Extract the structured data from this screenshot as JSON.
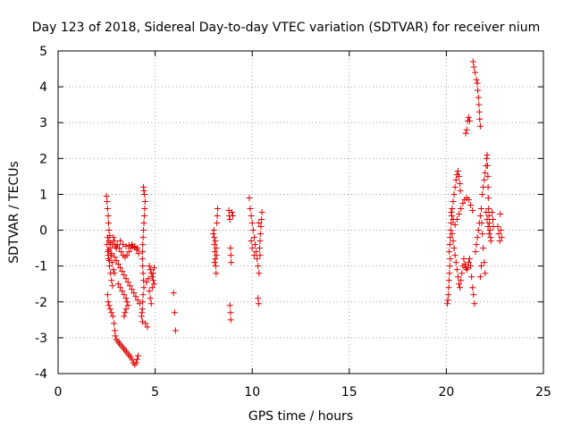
{
  "chart_data": {
    "type": "scatter",
    "title": "Day 123 of 2018, Sidereal Day-to-day VTEC variation (SDTVAR) for receiver nium",
    "xlabel": "GPS time / hours",
    "ylabel": "SDTVAR / TECUs",
    "xlim": [
      0,
      25
    ],
    "ylim": [
      -4,
      5
    ],
    "xticks": [
      "0",
      "5",
      "10",
      "15",
      "20",
      "25"
    ],
    "yticks": [
      "-4",
      "-3",
      "-2",
      "-1",
      "0",
      "1",
      "2",
      "3",
      "4",
      "5"
    ],
    "grid": true,
    "marker": "+",
    "color": "#e00000",
    "series": [
      {
        "name": "SDTVAR",
        "points": [
          [
            2.5,
            0.95
          ],
          [
            2.52,
            0.8
          ],
          [
            2.55,
            0.6
          ],
          [
            2.58,
            0.4
          ],
          [
            2.6,
            0.2
          ],
          [
            2.62,
            0.0
          ],
          [
            2.55,
            -0.2
          ],
          [
            2.52,
            -0.4
          ],
          [
            2.56,
            -0.6
          ],
          [
            2.6,
            -0.8
          ],
          [
            2.65,
            -1.0
          ],
          [
            2.7,
            -1.2
          ],
          [
            2.75,
            -1.4
          ],
          [
            2.8,
            -1.55
          ],
          [
            2.62,
            -0.3
          ],
          [
            2.68,
            -0.5
          ],
          [
            2.72,
            -0.7
          ],
          [
            2.78,
            -0.9
          ],
          [
            2.85,
            -1.1
          ],
          [
            2.9,
            -1.2
          ],
          [
            2.55,
            -1.8
          ],
          [
            2.58,
            -2.0
          ],
          [
            2.62,
            -2.1
          ],
          [
            2.68,
            -2.2
          ],
          [
            2.75,
            -2.3
          ],
          [
            2.82,
            -2.4
          ],
          [
            2.88,
            -2.6
          ],
          [
            2.92,
            -2.8
          ],
          [
            2.95,
            -2.95
          ],
          [
            3.0,
            -3.05
          ],
          [
            3.08,
            -3.1
          ],
          [
            3.15,
            -3.15
          ],
          [
            3.22,
            -3.2
          ],
          [
            3.3,
            -3.25
          ],
          [
            3.38,
            -3.3
          ],
          [
            3.45,
            -3.35
          ],
          [
            3.52,
            -3.4
          ],
          [
            3.6,
            -3.45
          ],
          [
            3.68,
            -3.5
          ],
          [
            3.75,
            -3.55
          ],
          [
            3.82,
            -3.62
          ],
          [
            3.88,
            -3.7
          ],
          [
            3.95,
            -3.75
          ],
          [
            4.02,
            -3.7
          ],
          [
            4.08,
            -3.6
          ],
          [
            4.12,
            -3.5
          ],
          [
            2.6,
            -0.55
          ],
          [
            2.75,
            -0.65
          ],
          [
            2.9,
            -0.75
          ],
          [
            3.0,
            -0.85
          ],
          [
            3.1,
            -0.95
          ],
          [
            3.2,
            -1.05
          ],
          [
            3.3,
            -1.15
          ],
          [
            3.4,
            -1.25
          ],
          [
            3.5,
            -1.35
          ],
          [
            3.6,
            -1.45
          ],
          [
            3.7,
            -1.55
          ],
          [
            3.8,
            -1.65
          ],
          [
            3.9,
            -1.75
          ],
          [
            4.0,
            -1.85
          ],
          [
            4.1,
            -1.95
          ],
          [
            4.2,
            -2.05
          ],
          [
            2.95,
            -0.45
          ],
          [
            3.05,
            -0.4
          ],
          [
            3.15,
            -0.5
          ],
          [
            3.25,
            -0.6
          ],
          [
            3.35,
            -0.7
          ],
          [
            3.45,
            -0.75
          ],
          [
            3.55,
            -0.7
          ],
          [
            3.65,
            -0.6
          ],
          [
            3.75,
            -0.5
          ],
          [
            3.85,
            -0.45
          ],
          [
            3.95,
            -0.48
          ],
          [
            4.05,
            -0.55
          ],
          [
            4.15,
            -0.65
          ],
          [
            3.2,
            -0.3
          ],
          [
            3.35,
            -0.4
          ],
          [
            3.5,
            -0.45
          ],
          [
            3.65,
            -0.42
          ],
          [
            3.8,
            -0.4
          ],
          [
            3.95,
            -0.45
          ],
          [
            4.1,
            -0.5
          ],
          [
            3.1,
            -1.5
          ],
          [
            3.2,
            -1.6
          ],
          [
            3.3,
            -1.7
          ],
          [
            3.4,
            -1.8
          ],
          [
            3.5,
            -1.9
          ],
          [
            3.55,
            -2.0
          ],
          [
            3.6,
            -2.1
          ],
          [
            3.5,
            -2.2
          ],
          [
            3.45,
            -2.3
          ],
          [
            3.4,
            -2.4
          ],
          [
            2.8,
            -0.4
          ],
          [
            2.85,
            -0.2
          ],
          [
            2.9,
            -0.3
          ],
          [
            3.0,
            -0.5
          ],
          [
            2.7,
            -0.35
          ],
          [
            2.66,
            -0.15
          ],
          [
            2.58,
            -0.7
          ],
          [
            2.64,
            -0.85
          ],
          [
            4.4,
            1.2
          ],
          [
            4.42,
            1.1
          ],
          [
            4.45,
            1.0
          ],
          [
            4.48,
            0.8
          ],
          [
            4.46,
            0.6
          ],
          [
            4.44,
            0.4
          ],
          [
            4.42,
            0.2
          ],
          [
            4.4,
            0.0
          ],
          [
            4.38,
            -0.2
          ],
          [
            4.36,
            -0.4
          ],
          [
            4.35,
            -0.6
          ],
          [
            4.34,
            -0.8
          ],
          [
            4.36,
            -1.0
          ],
          [
            4.38,
            -1.2
          ],
          [
            4.4,
            -1.4
          ],
          [
            4.42,
            -1.6
          ],
          [
            4.38,
            -1.8
          ],
          [
            4.36,
            -2.0
          ],
          [
            4.34,
            -2.2
          ],
          [
            4.32,
            -2.3
          ],
          [
            4.3,
            -2.4
          ],
          [
            4.35,
            -2.55
          ],
          [
            4.5,
            -2.6
          ],
          [
            4.6,
            -2.7
          ],
          [
            4.7,
            -1.0
          ],
          [
            4.75,
            -1.1
          ],
          [
            4.8,
            -1.2
          ],
          [
            4.85,
            -1.3
          ],
          [
            4.9,
            -1.4
          ],
          [
            4.95,
            -1.5
          ],
          [
            4.7,
            -1.7
          ],
          [
            4.75,
            -1.9
          ],
          [
            4.8,
            -2.05
          ],
          [
            4.85,
            -1.6
          ],
          [
            4.9,
            -1.2
          ],
          [
            4.95,
            -1.05
          ],
          [
            4.65,
            -1.35
          ],
          [
            4.55,
            -1.45
          ],
          [
            5.95,
            -1.75
          ],
          [
            6.0,
            -2.3
          ],
          [
            6.05,
            -2.8
          ],
          [
            8.0,
            -0.1
          ],
          [
            8.02,
            0.0
          ],
          [
            8.04,
            -0.2
          ],
          [
            8.06,
            -0.4
          ],
          [
            8.08,
            -0.6
          ],
          [
            8.1,
            -0.8
          ],
          [
            8.12,
            -1.0
          ],
          [
            8.14,
            -1.2
          ],
          [
            8.1,
            -0.3
          ],
          [
            8.15,
            -0.5
          ],
          [
            8.18,
            0.2
          ],
          [
            8.2,
            0.4
          ],
          [
            8.22,
            0.6
          ],
          [
            8.16,
            -0.7
          ],
          [
            8.06,
            -0.9
          ],
          [
            8.8,
            0.55
          ],
          [
            8.82,
            0.4
          ],
          [
            8.85,
            0.3
          ],
          [
            8.88,
            -0.5
          ],
          [
            8.9,
            -0.7
          ],
          [
            8.92,
            -0.9
          ],
          [
            8.85,
            -2.1
          ],
          [
            8.88,
            -2.3
          ],
          [
            8.9,
            -2.5
          ],
          [
            8.95,
            0.5
          ],
          [
            9.0,
            0.4
          ],
          [
            9.85,
            0.9
          ],
          [
            9.9,
            0.6
          ],
          [
            9.95,
            0.4
          ],
          [
            10.0,
            0.2
          ],
          [
            10.05,
            0.0
          ],
          [
            10.1,
            -0.2
          ],
          [
            10.15,
            -0.4
          ],
          [
            10.2,
            -0.6
          ],
          [
            10.25,
            -0.8
          ],
          [
            10.3,
            -1.0
          ],
          [
            10.35,
            -1.2
          ],
          [
            10.4,
            -0.3
          ],
          [
            10.42,
            -0.1
          ],
          [
            10.45,
            0.1
          ],
          [
            10.48,
            0.3
          ],
          [
            10.5,
            0.5
          ],
          [
            10.35,
            0.2
          ],
          [
            10.38,
            -0.5
          ],
          [
            10.4,
            -0.7
          ],
          [
            10.3,
            -1.9
          ],
          [
            10.33,
            -2.05
          ],
          [
            9.95,
            -0.3
          ],
          [
            10.0,
            -0.5
          ],
          [
            10.1,
            -0.7
          ],
          [
            20.05,
            -2.05
          ],
          [
            20.08,
            -1.95
          ],
          [
            20.1,
            -1.8
          ],
          [
            20.12,
            -1.6
          ],
          [
            20.14,
            -1.4
          ],
          [
            20.16,
            -1.2
          ],
          [
            20.18,
            -1.0
          ],
          [
            20.2,
            -0.8
          ],
          [
            20.15,
            -0.6
          ],
          [
            20.18,
            -0.4
          ],
          [
            20.2,
            -0.2
          ],
          [
            20.22,
            0.0
          ],
          [
            20.25,
            0.2
          ],
          [
            20.28,
            0.4
          ],
          [
            20.3,
            0.6
          ],
          [
            20.35,
            0.8
          ],
          [
            20.4,
            1.0
          ],
          [
            20.45,
            1.2
          ],
          [
            20.5,
            1.4
          ],
          [
            20.55,
            1.55
          ],
          [
            20.6,
            1.65
          ],
          [
            20.65,
            1.5
          ],
          [
            20.7,
            1.3
          ],
          [
            20.72,
            1.1
          ],
          [
            20.3,
            -0.1
          ],
          [
            20.35,
            -0.3
          ],
          [
            20.4,
            -0.5
          ],
          [
            20.45,
            -0.7
          ],
          [
            20.5,
            -0.9
          ],
          [
            20.55,
            -1.1
          ],
          [
            20.6,
            -1.3
          ],
          [
            20.65,
            -1.5
          ],
          [
            20.7,
            -1.6
          ],
          [
            20.75,
            -1.4
          ],
          [
            20.8,
            -1.2
          ],
          [
            20.85,
            -1.0
          ],
          [
            20.9,
            -0.8
          ],
          [
            20.95,
            -0.95
          ],
          [
            21.0,
            -1.05
          ],
          [
            21.05,
            -1.1
          ],
          [
            21.1,
            -1.05
          ],
          [
            21.15,
            -0.9
          ],
          [
            21.2,
            -0.8
          ],
          [
            21.25,
            -1.0
          ],
          [
            21.3,
            -1.3
          ],
          [
            21.35,
            -1.6
          ],
          [
            21.4,
            -1.8
          ],
          [
            21.45,
            -2.05
          ],
          [
            20.25,
            0.5
          ],
          [
            20.35,
            0.3
          ],
          [
            20.45,
            0.15
          ],
          [
            20.55,
            0.3
          ],
          [
            20.65,
            0.45
          ],
          [
            20.75,
            0.6
          ],
          [
            20.85,
            0.75
          ],
          [
            20.95,
            0.85
          ],
          [
            21.05,
            0.9
          ],
          [
            21.15,
            0.85
          ],
          [
            21.25,
            0.7
          ],
          [
            21.35,
            0.55
          ],
          [
            21.0,
            2.7
          ],
          [
            21.05,
            2.8
          ],
          [
            21.1,
            3.05
          ],
          [
            21.15,
            3.15
          ],
          [
            21.2,
            3.05
          ],
          [
            21.38,
            4.7
          ],
          [
            21.42,
            4.55
          ],
          [
            21.48,
            4.4
          ],
          [
            21.55,
            4.2
          ],
          [
            21.6,
            4.1
          ],
          [
            21.62,
            3.9
          ],
          [
            21.65,
            3.7
          ],
          [
            21.68,
            3.5
          ],
          [
            21.7,
            3.3
          ],
          [
            21.72,
            3.1
          ],
          [
            21.75,
            2.9
          ],
          [
            21.5,
            -0.6
          ],
          [
            21.55,
            -0.4
          ],
          [
            21.6,
            -0.2
          ],
          [
            21.65,
            0.0
          ],
          [
            21.7,
            0.2
          ],
          [
            21.75,
            0.4
          ],
          [
            21.8,
            0.6
          ],
          [
            21.82,
            0.2
          ],
          [
            21.85,
            -0.1
          ],
          [
            21.9,
            -0.5
          ],
          [
            21.95,
            -0.9
          ],
          [
            22.0,
            -1.2
          ],
          [
            21.8,
            -1.0
          ],
          [
            21.75,
            -1.3
          ],
          [
            21.85,
            1.0
          ],
          [
            21.9,
            1.2
          ],
          [
            21.95,
            1.4
          ],
          [
            22.0,
            1.6
          ],
          [
            22.05,
            1.8
          ],
          [
            22.08,
            2.0
          ],
          [
            22.1,
            2.1
          ],
          [
            22.12,
            1.8
          ],
          [
            22.14,
            1.5
          ],
          [
            22.15,
            1.2
          ],
          [
            22.16,
            0.9
          ],
          [
            22.18,
            0.6
          ],
          [
            22.2,
            0.4
          ],
          [
            22.22,
            0.2
          ],
          [
            22.25,
            0.0
          ],
          [
            22.28,
            -0.2
          ],
          [
            22.05,
            0.5
          ],
          [
            22.1,
            0.3
          ],
          [
            22.15,
            0.1
          ],
          [
            22.2,
            -0.1
          ],
          [
            22.3,
            -0.3
          ],
          [
            22.35,
            0.5
          ],
          [
            22.4,
            0.3
          ],
          [
            22.42,
            0.1
          ],
          [
            22.65,
            0.1
          ],
          [
            22.7,
            -0.1
          ],
          [
            22.75,
            -0.3
          ],
          [
            22.78,
            0.45
          ],
          [
            22.8,
            0.0
          ],
          [
            22.85,
            -0.2
          ]
        ]
      }
    ]
  }
}
